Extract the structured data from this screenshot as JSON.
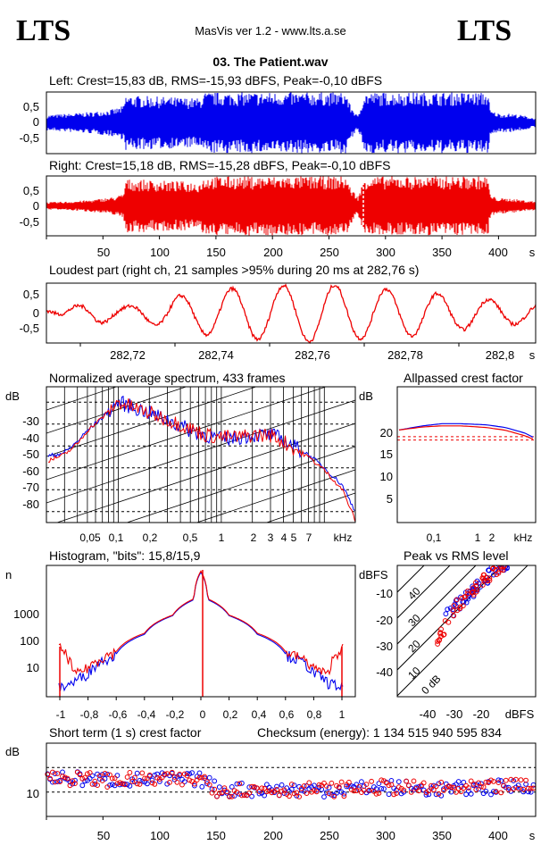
{
  "header": {
    "logo_left": "LTS",
    "logo_right": "LTS",
    "app_title": "MasVis ver 1.2 - www.lts.a.se",
    "file_title": "03. The Patient.wav"
  },
  "colors": {
    "left": "#0000ee",
    "right": "#ee0000"
  },
  "waveform_left": {
    "label": "Left: Crest=15,83 dB, RMS=-15,93 dBFS, Peak=-0,10 dBFS",
    "yticks": [
      "0,5",
      "0",
      "-0,5"
    ]
  },
  "waveform_right": {
    "label": "Right: Crest=15,18 dB, RMS=-15,28 dBFS, Peak=-0,10 dBFS",
    "yticks": [
      "0,5",
      "0",
      "-0,5"
    ],
    "xticks": [
      "50",
      "100",
      "150",
      "200",
      "250",
      "300",
      "350",
      "400",
      "s"
    ]
  },
  "loudest": {
    "label": "Loudest part (right ch, 21 samples >95% during 20 ms at 282,76 s)",
    "yticks": [
      "0,5",
      "0",
      "-0,5"
    ],
    "xticks": [
      "282,72",
      "282,74",
      "282,76",
      "282,78",
      "282,8",
      "s"
    ]
  },
  "spectrum": {
    "label": "Normalized average spectrum, 433 frames",
    "unit": "dB",
    "yticks": [
      "-30",
      "-40",
      "-50",
      "-60",
      "-70",
      "-80"
    ],
    "xticks": [
      "0,05",
      "0,1",
      "0,2",
      "0,5",
      "1",
      "2",
      "3",
      "4",
      "5",
      "7",
      "kHz"
    ]
  },
  "allpass": {
    "label": "Allpassed crest factor",
    "unit": "dB",
    "yticks": [
      "20",
      "15",
      "10",
      "5"
    ],
    "xticks": [
      "0,1",
      "1",
      "2",
      "kHz"
    ]
  },
  "histogram": {
    "label": "Histogram, \"bits\": 15,8/15,9",
    "unit": "n",
    "yticks": [
      "1000",
      "100",
      "10"
    ],
    "xticks": [
      "-1",
      "-0,8",
      "-0,6",
      "-0,4",
      "-0,2",
      "0",
      "0,2",
      "0,4",
      "0,6",
      "0,8",
      "1"
    ]
  },
  "peakrms": {
    "label": "Peak vs RMS level",
    "unit": "dBFS",
    "yticks": [
      "-10",
      "-20",
      "-30",
      "-40"
    ],
    "xticks": [
      "-40",
      "-30",
      "-20",
      "dBFS"
    ],
    "diag_labels": [
      "40",
      "30",
      "20",
      "10",
      "0 dB"
    ]
  },
  "shortcrest": {
    "label": "Short term (1 s) crest factor",
    "checksum": "Checksum (energy):  1 134 515 940 595 834",
    "unit": "dB",
    "yticks": [
      "10"
    ],
    "xticks": [
      "50",
      "100",
      "150",
      "200",
      "250",
      "300",
      "350",
      "400",
      "s"
    ]
  },
  "chart_data": [
    {
      "type": "area",
      "id": "waveform_left",
      "title": "Left: Crest=15,83 dB, RMS=-15,93 dBFS, Peak=-0,10 dBFS",
      "xlabel": "s",
      "xlim": [
        0,
        432
      ],
      "ylim": [
        -1,
        1
      ],
      "x": [
        0,
        20,
        40,
        60,
        68,
        70,
        100,
        135,
        140,
        145,
        200,
        265,
        268,
        272,
        275,
        278,
        280,
        300,
        340,
        390,
        392,
        400,
        410,
        420,
        432
      ],
      "envelope": [
        0.25,
        0.3,
        0.35,
        0.45,
        0.55,
        0.9,
        0.85,
        0.8,
        0.99,
        0.99,
        0.99,
        0.99,
        0.6,
        0.4,
        0.2,
        0.6,
        0.99,
        0.99,
        0.99,
        0.99,
        0.4,
        0.3,
        0.3,
        0.25,
        0.15
      ]
    },
    {
      "type": "area",
      "id": "waveform_right",
      "title": "Right: Crest=15,18 dB, RMS=-15,28 dBFS, Peak=-0,10 dBFS",
      "xlabel": "s",
      "xlim": [
        0,
        432
      ],
      "ylim": [
        -1,
        1
      ],
      "x": [
        0,
        20,
        40,
        60,
        68,
        70,
        100,
        135,
        140,
        145,
        200,
        265,
        268,
        272,
        275,
        278,
        280,
        300,
        340,
        390,
        392,
        400,
        410,
        420,
        432
      ],
      "envelope": [
        0.12,
        0.15,
        0.2,
        0.3,
        0.4,
        0.9,
        0.85,
        0.8,
        0.99,
        0.99,
        0.99,
        0.99,
        0.65,
        0.45,
        0.3,
        0.6,
        0.99,
        0.99,
        0.99,
        0.99,
        0.35,
        0.25,
        0.25,
        0.2,
        0.15
      ]
    },
    {
      "type": "line",
      "id": "loudest",
      "title": "Loudest part (right ch, 21 samples >95% during 20 ms at 282,76 s)",
      "xlabel": "s",
      "xlim": [
        282.706,
        282.806
      ],
      "ylim": [
        -1,
        1
      ],
      "x": [
        282.706,
        282.711,
        282.716,
        282.722,
        282.728,
        282.734,
        282.74,
        282.746,
        282.752,
        282.758,
        282.764,
        282.77,
        282.776,
        282.782,
        282.788,
        282.794,
        282.8,
        282.806
      ],
      "y": [
        -0.1,
        0.2,
        0.35,
        0.2,
        0.4,
        0.6,
        0.75,
        0.85,
        0.9,
        0.95,
        0.95,
        0.85,
        0.8,
        0.75,
        0.6,
        0.5,
        0.4,
        0.3
      ],
      "note_y_is_amplitude_of_oscillation": true
    },
    {
      "type": "line",
      "id": "spectrum",
      "title": "Normalized average spectrum, 433 frames",
      "ylabel": "dB",
      "xlabel": "kHz",
      "xscale": "log",
      "xlim": [
        0.02,
        20
      ],
      "ylim": [
        -90,
        -20
      ],
      "series": [
        {
          "name": "",
          "color": "#0000ee",
          "x": [
            0.02,
            0.03,
            0.04,
            0.05,
            0.07,
            0.1,
            0.15,
            0.2,
            0.3,
            0.5,
            0.7,
            1,
            1.5,
            2,
            3,
            4,
            5,
            7,
            10,
            15,
            20
          ],
          "y": [
            -55,
            -53,
            -48,
            -43,
            -37,
            -30,
            -33,
            -35,
            -38,
            -43,
            -45,
            -47,
            -46,
            -45,
            -45,
            -47,
            -50,
            -54,
            -60,
            -68,
            -80
          ]
        },
        {
          "name": "",
          "color": "#ee0000",
          "x": [
            0.02,
            0.03,
            0.04,
            0.05,
            0.07,
            0.1,
            0.15,
            0.2,
            0.3,
            0.5,
            0.7,
            1,
            1.5,
            2,
            3,
            4,
            5,
            7,
            10,
            15,
            20
          ],
          "y": [
            -57,
            -54,
            -49,
            -43,
            -37,
            -30,
            -33,
            -35,
            -38,
            -42,
            -45,
            -46,
            -46,
            -45,
            -45,
            -48,
            -51,
            -55,
            -61,
            -70,
            -84
          ]
        }
      ]
    },
    {
      "type": "line",
      "id": "allpass",
      "title": "Allpassed crest factor",
      "ylabel": "dB",
      "xlabel": "kHz",
      "xscale": "log",
      "xlim": [
        0.02,
        3
      ],
      "ylim": [
        0,
        25
      ],
      "series": [
        {
          "name": "",
          "color": "#0000ee",
          "x": [
            0.02,
            0.05,
            0.1,
            0.2,
            0.5,
            1,
            2,
            3
          ],
          "y": [
            17.0,
            17.8,
            18.2,
            18.2,
            18.0,
            17.5,
            16.5,
            15.5
          ]
        },
        {
          "name": "",
          "color": "#ee0000",
          "x": [
            0.02,
            0.05,
            0.1,
            0.2,
            0.5,
            1,
            2,
            3
          ],
          "y": [
            17.0,
            17.6,
            17.8,
            17.8,
            17.5,
            17.0,
            16.0,
            15.2
          ]
        }
      ],
      "reference_lines": [
        15.8,
        15.2
      ]
    },
    {
      "type": "line",
      "id": "histogram",
      "title": "Histogram, \"bits\": 15,8/15,9",
      "ylabel": "n",
      "yscale": "log",
      "xlim": [
        -1.1,
        1.1
      ],
      "ylim": [
        1,
        20000
      ],
      "series": [
        {
          "name": "",
          "color": "#0000ee",
          "x": [
            -1,
            -0.9,
            -0.8,
            -0.6,
            -0.4,
            -0.2,
            -0.05,
            0,
            0.05,
            0.2,
            0.4,
            0.6,
            0.8,
            0.9,
            1
          ],
          "y": [
            2,
            3,
            6,
            25,
            110,
            450,
            1500,
            12000,
            1500,
            450,
            110,
            25,
            6,
            3,
            2
          ]
        },
        {
          "name": "",
          "color": "#ee0000",
          "x": [
            -1,
            -0.9,
            -0.8,
            -0.6,
            -0.4,
            -0.2,
            -0.05,
            0,
            0.05,
            0.2,
            0.4,
            0.6,
            0.8,
            0.9,
            1
          ],
          "y": [
            40,
            5,
            9,
            30,
            120,
            470,
            1600,
            13000,
            1600,
            470,
            120,
            30,
            9,
            5,
            40
          ]
        }
      ]
    },
    {
      "type": "scatter",
      "id": "peakrms",
      "title": "Peak vs RMS level",
      "xlabel": "dBFS",
      "ylabel": "dBFS",
      "xlim": [
        -50,
        0
      ],
      "ylim": [
        -50,
        0
      ],
      "series": [
        {
          "name": "",
          "color": "#0000ee",
          "x": [
            -33,
            -30,
            -28,
            -26,
            -24,
            -22,
            -20,
            -18,
            -16,
            -14,
            -12,
            -10
          ],
          "y": [
            -20,
            -17,
            -15,
            -13,
            -11,
            -9,
            -7,
            -5,
            -3,
            -2,
            -1,
            -0.5
          ]
        },
        {
          "name": "",
          "color": "#ee0000",
          "x": [
            -36,
            -32,
            -29,
            -27,
            -25,
            -23,
            -21,
            -19,
            -17,
            -15,
            -13,
            -11
          ],
          "y": [
            -30,
            -22,
            -16,
            -14,
            -12,
            -10,
            -8,
            -6,
            -4,
            -2.5,
            -1.5,
            -0.5
          ]
        }
      ]
    },
    {
      "type": "scatter",
      "id": "shortcrest",
      "title": "Short term (1 s) crest factor",
      "ylabel": "dB",
      "xlabel": "s",
      "xlim": [
        0,
        432
      ],
      "ylim": [
        0,
        30
      ],
      "series": [
        {
          "name": "",
          "color": "#0000ee",
          "x": [
            0,
            50,
            100,
            140,
            150,
            200,
            250,
            300,
            350,
            400,
            432
          ],
          "y": [
            16,
            15,
            15,
            15,
            11,
            11,
            11,
            12,
            11,
            12,
            13
          ]
        },
        {
          "name": "",
          "color": "#ee0000",
          "x": [
            0,
            50,
            100,
            140,
            150,
            200,
            250,
            300,
            350,
            400,
            432
          ],
          "y": [
            16,
            15,
            15,
            15,
            11,
            11,
            11,
            12,
            11,
            12,
            13
          ]
        }
      ],
      "reference_lines": [
        10,
        20
      ]
    }
  ]
}
